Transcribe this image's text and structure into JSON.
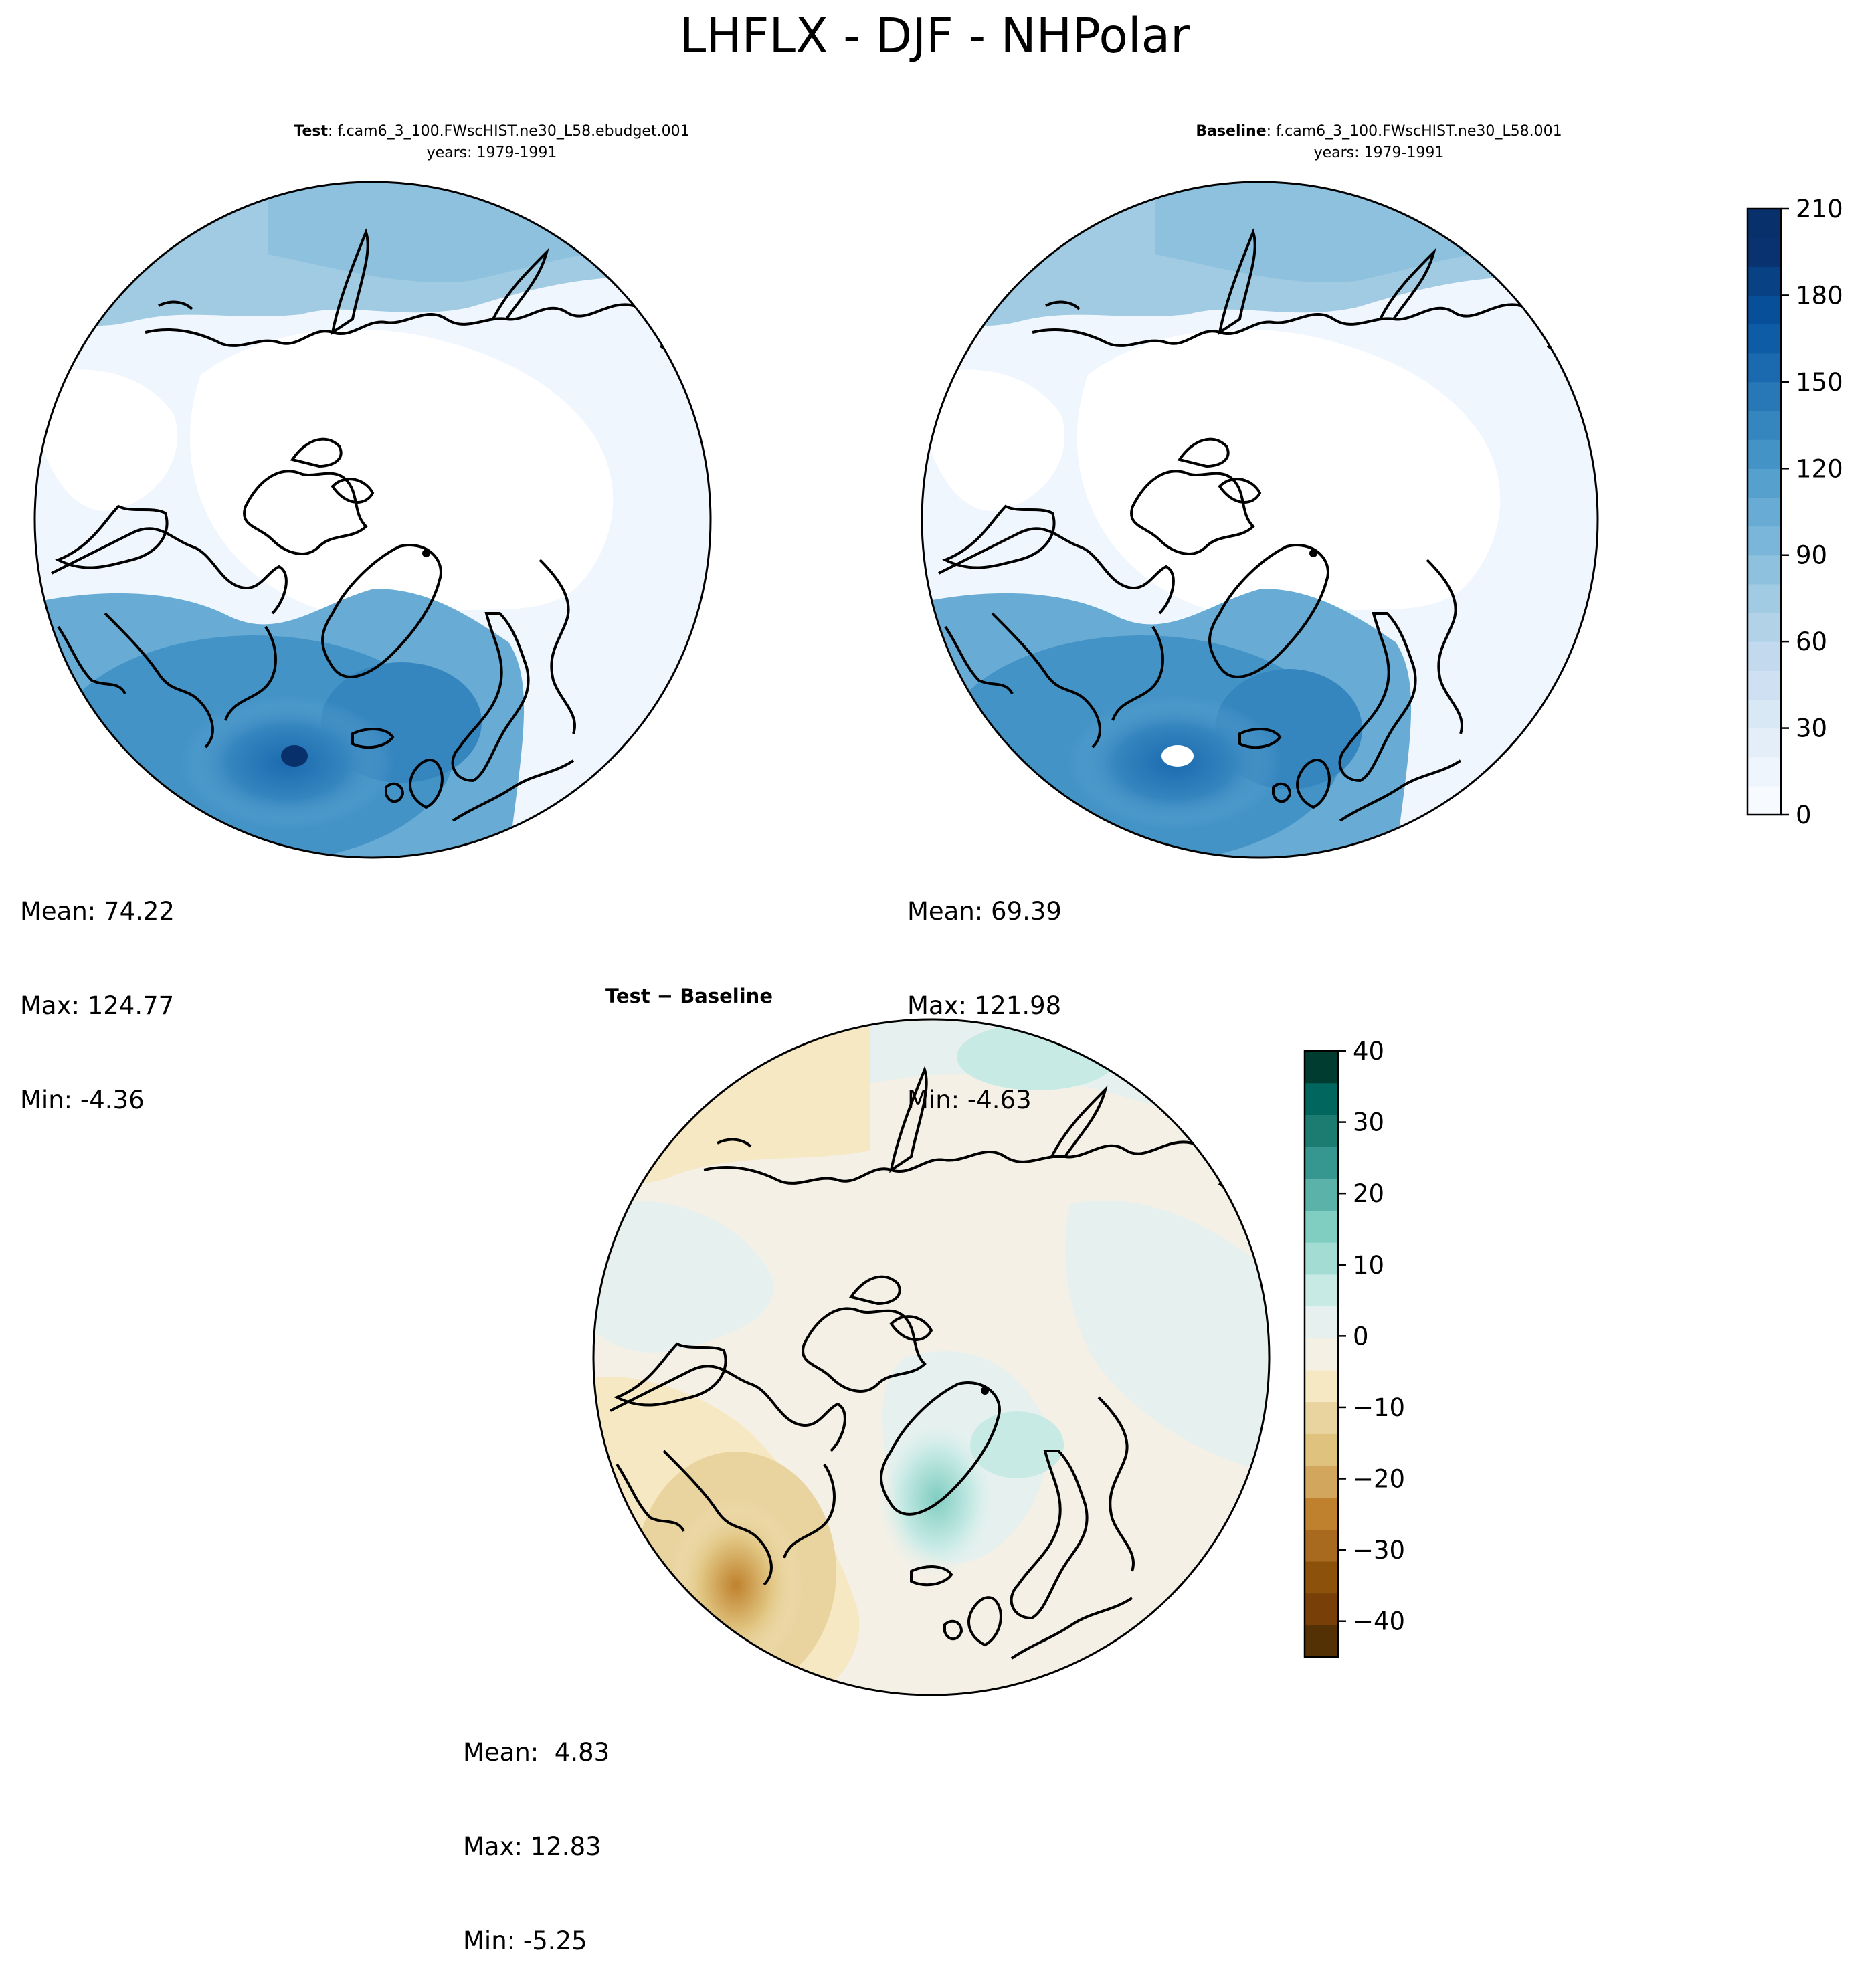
{
  "title": "LHFLX - DJF - NHPolar",
  "panels": {
    "test": {
      "title_bold": "Test",
      "title_rest": ": f.cam6_3_100.FWscHIST.ne30_L58.ebudget.001",
      "years": "years: 1979-1991",
      "stats": {
        "mean": "Mean: 74.22",
        "max": "Max: 124.77",
        "min": "Min: -4.36"
      }
    },
    "baseline": {
      "title_bold": "Baseline",
      "title_rest": ": f.cam6_3_100.FWscHIST.ne30_L58.001",
      "years": "years: 1979-1991",
      "stats": {
        "mean": "Mean: 69.39",
        "max": "Max: 121.98",
        "min": "Min: -4.63"
      }
    },
    "diff": {
      "title": "Test − Baseline",
      "stats": {
        "mean": "Mean:  4.83",
        "max": "Max: 12.83",
        "min": "Min: -5.25"
      }
    }
  },
  "chart_data": [
    {
      "type": "heatmap",
      "projection": "north-polar-stereographic",
      "title": "Test: f.cam6_3_100.FWscHIST.ne30_L58.ebudget.001",
      "years": "1979-1991",
      "field": "LHFLX",
      "season": "DJF",
      "region": "NHPolar",
      "mean": 74.22,
      "max": 124.77,
      "min": -4.36
    },
    {
      "type": "heatmap",
      "projection": "north-polar-stereographic",
      "title": "Baseline: f.cam6_3_100.FWscHIST.ne30_L58.001",
      "years": "1979-1991",
      "field": "LHFLX",
      "season": "DJF",
      "region": "NHPolar",
      "mean": 69.39,
      "max": 121.98,
      "min": -4.63
    },
    {
      "type": "heatmap",
      "projection": "north-polar-stereographic",
      "title": "Test − Baseline",
      "mean": 4.83,
      "max": 12.83,
      "min": -5.25
    }
  ],
  "colorbars": {
    "main": {
      "range": [
        0,
        210
      ],
      "ticks": [
        0,
        30,
        60,
        90,
        120,
        150,
        180,
        210
      ],
      "tick_labels": [
        "0",
        "30",
        "60",
        "90",
        "120",
        "150",
        "180",
        "210"
      ],
      "levels": 21,
      "colors": [
        "#f7fbff",
        "#eef5fc",
        "#e3eef9",
        "#d9e8f5",
        "#cee0f2",
        "#c2d9ee",
        "#b2d2e8",
        "#a0cbe2",
        "#8dc1dd",
        "#7ab6d9",
        "#68acd5",
        "#56a0ce",
        "#4493c7",
        "#3585bf",
        "#2878b8",
        "#1b6aaf",
        "#0f5ca6",
        "#084f99",
        "#084184",
        "#083370",
        "#08306b"
      ]
    },
    "diff": {
      "range": [
        -45,
        40
      ],
      "ticks": [
        -40,
        -30,
        -20,
        -10,
        0,
        10,
        20,
        30,
        40
      ],
      "tick_labels": [
        "−40",
        "−30",
        "−20",
        "−10",
        "0",
        "10",
        "20",
        "30",
        "40"
      ],
      "colors": [
        "#543005",
        "#784008",
        "#8c510a",
        "#a76a1f",
        "#bf812d",
        "#d2a75d",
        "#dfc27d",
        "#e9d4a0",
        "#f6e8c3",
        "#f5f0e4",
        "#e6f1ef",
        "#c7eae5",
        "#a3dcd2",
        "#80cdc1",
        "#5ab2a8",
        "#35978f",
        "#1c7c72",
        "#01665e",
        "#003c30"
      ]
    }
  },
  "colors": {
    "land_fill_main": "#ffffff",
    "ocean_main": "#f0f6fd",
    "diff_background": "#f4f0e6",
    "coastline": "#000000"
  }
}
